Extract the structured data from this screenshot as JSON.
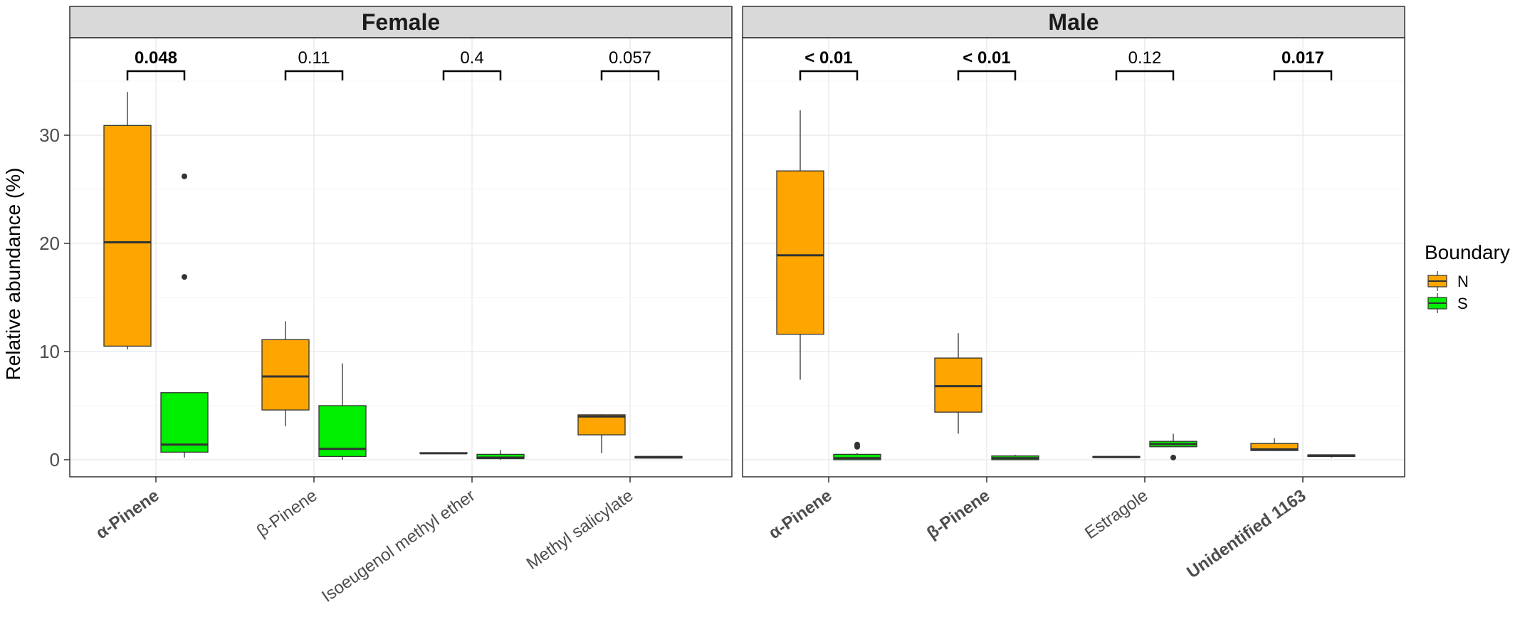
{
  "chart_data": {
    "type": "boxplot",
    "ylabel": "Relative abundance (%)",
    "ylim": [
      -1.5,
      39.5
    ],
    "yticks": [
      0,
      10,
      20,
      30
    ],
    "grid": true,
    "legend": {
      "title": "Boundary",
      "placement": "right",
      "entries": [
        {
          "name": "N",
          "color": "#ffa500"
        },
        {
          "name": "S",
          "color": "#00ee00"
        }
      ]
    },
    "facets": [
      {
        "name": "Female",
        "categories": [
          {
            "label": "α-Pinene",
            "bold": true,
            "pvalue": "0.048",
            "p_bold": true,
            "boxes": {
              "N": {
                "whisker_low": 10.2,
                "q1": 10.5,
                "median": 20.1,
                "q3": 30.9,
                "whisker_high": 34.0,
                "outliers": []
              },
              "S": {
                "whisker_low": 0.2,
                "q1": 0.7,
                "median": 1.4,
                "q3": 6.2,
                "whisker_high": 6.2,
                "outliers": [
                  26.2,
                  16.9
                ]
              }
            }
          },
          {
            "label": "β-Pinene",
            "bold": false,
            "pvalue": "0.11",
            "p_bold": false,
            "boxes": {
              "N": {
                "whisker_low": 3.1,
                "q1": 4.6,
                "median": 7.7,
                "q3": 11.1,
                "whisker_high": 12.8,
                "outliers": []
              },
              "S": {
                "whisker_low": 0.0,
                "q1": 0.3,
                "median": 1.0,
                "q3": 5.0,
                "whisker_high": 8.9,
                "outliers": []
              }
            }
          },
          {
            "label": "Isoeugenol methyl ether",
            "bold": false,
            "pvalue": "0.4",
            "p_bold": false,
            "boxes": {
              "N": {
                "whisker_low": 0.6,
                "q1": 0.6,
                "median": 0.6,
                "q3": 0.65,
                "whisker_high": 0.7,
                "outliers": []
              },
              "S": {
                "whisker_low": 0.0,
                "q1": 0.1,
                "median": 0.2,
                "q3": 0.5,
                "whisker_high": 0.9,
                "outliers": []
              }
            }
          },
          {
            "label": "Methyl salicylate",
            "bold": false,
            "pvalue": "0.057",
            "p_bold": false,
            "boxes": {
              "N": {
                "whisker_low": 0.6,
                "q1": 2.3,
                "median": 4.0,
                "q3": 4.15,
                "whisker_high": 4.2,
                "outliers": []
              },
              "S": {
                "whisker_low": 0.1,
                "q1": 0.15,
                "median": 0.25,
                "q3": 0.3,
                "whisker_high": 0.35,
                "outliers": []
              }
            }
          }
        ]
      },
      {
        "name": "Male",
        "categories": [
          {
            "label": "α-Pinene",
            "bold": true,
            "pvalue": "< 0.01",
            "p_bold": true,
            "boxes": {
              "N": {
                "whisker_low": 7.4,
                "q1": 11.6,
                "median": 18.9,
                "q3": 26.7,
                "whisker_high": 32.3,
                "outliers": []
              },
              "S": {
                "whisker_low": 0.0,
                "q1": 0.0,
                "median": 0.15,
                "q3": 0.5,
                "whisker_high": 0.6,
                "outliers": [
                  1.2,
                  1.4
                ]
              }
            }
          },
          {
            "label": "β-Pinene",
            "bold": true,
            "pvalue": "< 0.01",
            "p_bold": true,
            "boxes": {
              "N": {
                "whisker_low": 2.4,
                "q1": 4.4,
                "median": 6.8,
                "q3": 9.4,
                "whisker_high": 11.7,
                "outliers": []
              },
              "S": {
                "whisker_low": 0.0,
                "q1": 0.0,
                "median": 0.15,
                "q3": 0.35,
                "whisker_high": 0.45,
                "outliers": []
              }
            }
          },
          {
            "label": "Estragole",
            "bold": false,
            "pvalue": "0.12",
            "p_bold": false,
            "boxes": {
              "N": {
                "whisker_low": 0.15,
                "q1": 0.2,
                "median": 0.25,
                "q3": 0.3,
                "whisker_high": 0.35,
                "outliers": []
              },
              "S": {
                "whisker_low": 1.2,
                "q1": 1.2,
                "median": 1.45,
                "q3": 1.7,
                "whisker_high": 2.4,
                "outliers": [
                  0.2
                ]
              }
            }
          },
          {
            "label": "Unidentified 1163",
            "bold": true,
            "pvalue": "0.017",
            "p_bold": true,
            "boxes": {
              "N": {
                "whisker_low": 0.8,
                "q1": 0.85,
                "median": 0.95,
                "q3": 1.5,
                "whisker_high": 2.0,
                "outliers": []
              },
              "S": {
                "whisker_low": 0.2,
                "q1": 0.3,
                "median": 0.4,
                "q3": 0.45,
                "whisker_high": 0.5,
                "outliers": []
              }
            }
          }
        ]
      }
    ]
  }
}
